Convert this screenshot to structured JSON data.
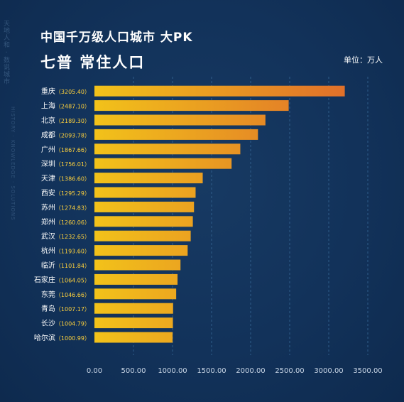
{
  "header": {
    "title": "中国千万级人口城市 大PK",
    "subtitle": "七普 常住人口",
    "unit": "单位：万人"
  },
  "side": {
    "vertical_label": "天地人和 · 数说城市",
    "vertical_label2": "HISTORY · KNOWLEDGE · SOLUTIONS"
  },
  "chart_data": {
    "type": "bar",
    "orientation": "horizontal",
    "categories": [
      "重庆",
      "上海",
      "北京",
      "成都",
      "广州",
      "深圳",
      "天津",
      "西安",
      "苏州",
      "郑州",
      "武汉",
      "杭州",
      "临沂",
      "石家庄",
      "东莞",
      "青岛",
      "长沙",
      "哈尔滨"
    ],
    "category_labels": [
      "重庆（3205.40）",
      "上海（2487.10）",
      "北京（2189.30）",
      "成都（2093.78）",
      "广州（1867.66）",
      "深圳（1756.01）",
      "天津（1386.60）",
      "西安（1295.29）",
      "苏州（1274.83）",
      "郑州（1260.06）",
      "武汉（1232.65）",
      "杭州（1193.60）",
      "临沂（1101.84）",
      "石家庄（1064.05）",
      "东莞（1046.66）",
      "青岛（1007.17）",
      "长沙（1004.79）",
      "哈尔滨（1000.99）"
    ],
    "values": [
      3205.4,
      2487.1,
      2189.3,
      2093.78,
      1867.66,
      1756.01,
      1386.6,
      1295.29,
      1274.83,
      1260.06,
      1232.65,
      1193.6,
      1101.84,
      1064.05,
      1046.66,
      1007.17,
      1004.79,
      1000.99
    ],
    "xlim": [
      0,
      3500
    ],
    "xticks": [
      0,
      500,
      1000,
      1500,
      2000,
      2500,
      3000,
      3500
    ],
    "xtick_labels": [
      "0.00",
      "500.00",
      "1000.00",
      "1500.00",
      "2000.00",
      "2500.00",
      "3000.00",
      "3500.00"
    ],
    "grid": "vertical dashed",
    "colors": {
      "bar_start": "#f2c21a",
      "bar_end": "#e0702a",
      "value_text": "#ffd23c",
      "label_text": "#ffffff",
      "grid": "#2f5d8a"
    }
  }
}
